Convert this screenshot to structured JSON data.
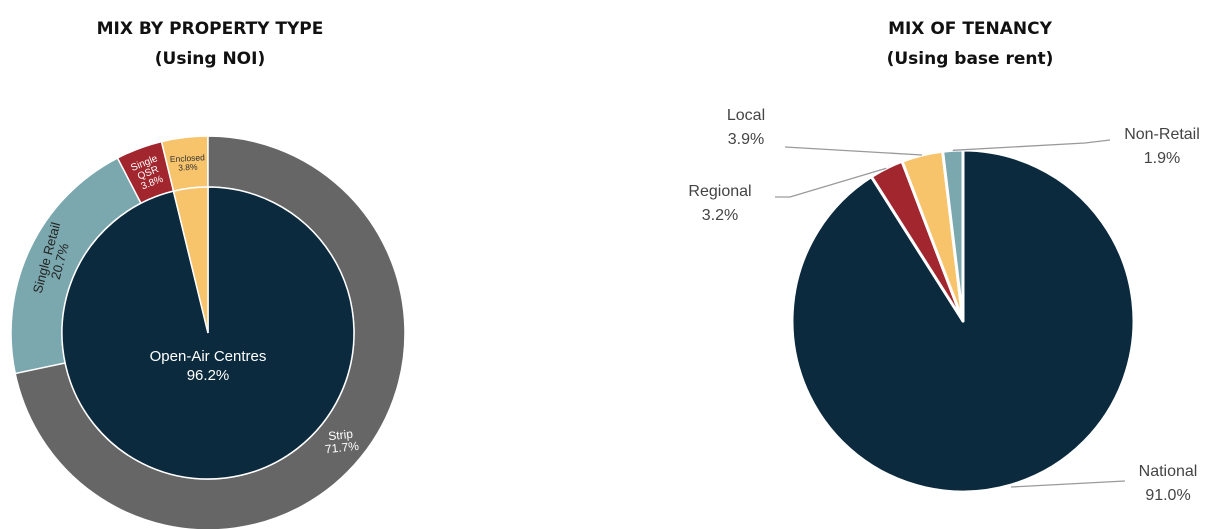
{
  "chart_data": [
    {
      "type": "pie",
      "subtype": "nested-donut",
      "title": "MIX BY PROPERTY TYPE",
      "subtitle": "(Using NOI)",
      "inner_ring": [
        {
          "label": "Open-Air Centres",
          "value": 96.2,
          "value_label": "96.2%",
          "color": "#0b2a3d"
        },
        {
          "label": "Enclosed",
          "value": 3.8,
          "value_label": "3.8%",
          "color": "#f7c46c"
        }
      ],
      "outer_ring": [
        {
          "label": "Strip",
          "value": 71.7,
          "value_label": "71.7%",
          "color": "#666666"
        },
        {
          "label": "Single Retail",
          "value": 20.7,
          "value_label": "20.7%",
          "color": "#7aa8ae"
        },
        {
          "label": "Single QSR",
          "label_lines": [
            "Single",
            "QSR"
          ],
          "value": 3.8,
          "value_label": "3.8%",
          "color": "#a1262e"
        },
        {
          "label": "Enclosed",
          "value": 3.8,
          "value_label": "3.8%",
          "color": "#f7c46c"
        }
      ]
    },
    {
      "type": "pie",
      "title": "MIX OF TENANCY",
      "subtitle": "(Using base rent)",
      "slices": [
        {
          "label": "National",
          "value": 91.0,
          "value_label": "91.0%",
          "color": "#0b2a3d"
        },
        {
          "label": "Regional",
          "value": 3.2,
          "value_label": "3.2%",
          "color": "#a1262e"
        },
        {
          "label": "Local",
          "value": 3.9,
          "value_label": "3.9%",
          "color": "#f7c46c"
        },
        {
          "label": "Non-Retail",
          "value": 1.9,
          "value_label": "1.9%",
          "color": "#7aa8ae"
        }
      ]
    }
  ]
}
